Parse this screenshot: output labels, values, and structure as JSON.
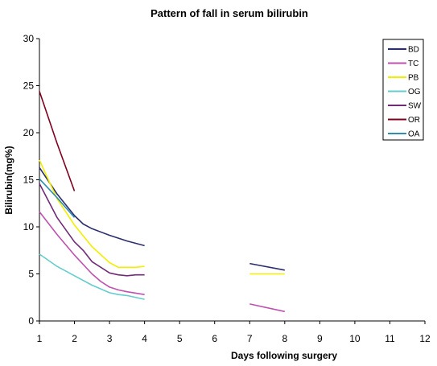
{
  "chart_data": {
    "type": "line",
    "title": "Pattern of fall in serum bilirubin",
    "xlabel": "Days following surgery",
    "ylabel": "Bilirubin(mg%)",
    "xlim": [
      1,
      12
    ],
    "ylim": [
      0,
      30
    ],
    "x_ticks": [
      1,
      2,
      3,
      4,
      5,
      6,
      7,
      8,
      9,
      10,
      11,
      12
    ],
    "y_ticks": [
      0,
      5,
      10,
      15,
      20,
      25,
      30
    ],
    "grid": false,
    "legend_position": "top-right",
    "series": [
      {
        "name": "BD",
        "color": "#2b2d6e",
        "segments": [
          [
            [
              1,
              16.3
            ],
            [
              1.5,
              13.5
            ],
            [
              2,
              11.2
            ],
            [
              2.25,
              10.3
            ],
            [
              2.5,
              9.8
            ],
            [
              3,
              9.1
            ],
            [
              3.5,
              8.5
            ],
            [
              4,
              8.0
            ]
          ],
          [
            [
              7,
              6.1
            ],
            [
              8,
              5.4
            ]
          ]
        ]
      },
      {
        "name": "TC",
        "color": "#c050b0",
        "segments": [
          [
            [
              1,
              11.6
            ],
            [
              1.5,
              9.2
            ],
            [
              2,
              7.0
            ],
            [
              2.5,
              5.0
            ],
            [
              2.75,
              4.2
            ],
            [
              3,
              3.6
            ],
            [
              3.25,
              3.3
            ],
            [
              3.5,
              3.1
            ],
            [
              4,
              2.8
            ]
          ],
          [
            [
              7,
              1.8
            ],
            [
              8,
              1.0
            ]
          ]
        ]
      },
      {
        "name": "PB",
        "color": "#f2ee00",
        "segments": [
          [
            [
              1,
              17.1
            ],
            [
              1.5,
              13.0
            ],
            [
              2,
              10.2
            ],
            [
              2.5,
              7.9
            ],
            [
              3,
              6.2
            ],
            [
              3.25,
              5.7
            ],
            [
              3.5,
              5.7
            ],
            [
              3.75,
              5.7
            ],
            [
              4,
              5.8
            ]
          ],
          [
            [
              7,
              5.0
            ],
            [
              8,
              5.0
            ]
          ]
        ]
      },
      {
        "name": "OG",
        "color": "#66cccc",
        "segments": [
          [
            [
              1,
              7.1
            ],
            [
              1.5,
              5.8
            ],
            [
              2,
              4.8
            ],
            [
              2.5,
              3.8
            ],
            [
              3,
              3.0
            ],
            [
              3.25,
              2.8
            ],
            [
              3.5,
              2.7
            ],
            [
              4,
              2.3
            ]
          ]
        ]
      },
      {
        "name": "SW",
        "color": "#702a78",
        "segments": [
          [
            [
              1,
              14.6
            ],
            [
              1.5,
              11.0
            ],
            [
              2,
              8.4
            ],
            [
              2.25,
              7.5
            ],
            [
              2.5,
              6.3
            ],
            [
              3,
              5.1
            ],
            [
              3.25,
              4.9
            ],
            [
              3.5,
              4.8
            ],
            [
              3.75,
              4.9
            ],
            [
              4,
              4.9
            ]
          ]
        ]
      },
      {
        "name": "OR",
        "color": "#800020",
        "segments": [
          [
            [
              1,
              24.4
            ],
            [
              1.5,
              18.9
            ],
            [
              2,
              13.8
            ]
          ]
        ]
      },
      {
        "name": "OA",
        "color": "#2f8fb0",
        "segments": [
          [
            [
              1,
              15.1
            ],
            [
              1.5,
              13.1
            ],
            [
              2,
              11.0
            ]
          ]
        ]
      }
    ]
  }
}
